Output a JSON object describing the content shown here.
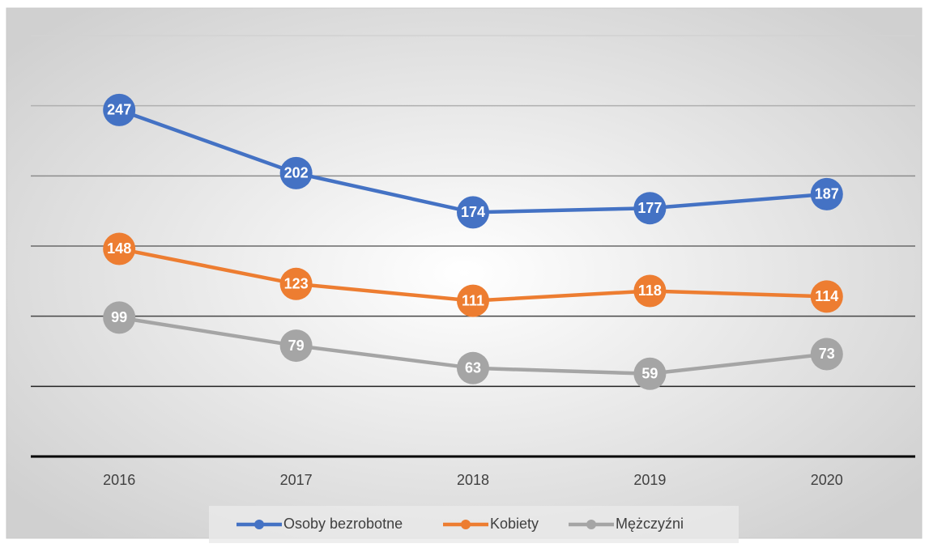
{
  "chart_data": {
    "type": "line",
    "categories": [
      "2016",
      "2017",
      "2018",
      "2019",
      "2020"
    ],
    "series": [
      {
        "name": "Osoby bezrobotne",
        "color": "#4472c4",
        "values": [
          247,
          202,
          174,
          177,
          187
        ]
      },
      {
        "name": "Kobiety",
        "color": "#ed7d31",
        "values": [
          148,
          123,
          111,
          118,
          114
        ]
      },
      {
        "name": "Mężczyźni",
        "color": "#a5a5a5",
        "values": [
          99,
          79,
          63,
          59,
          73
        ]
      }
    ],
    "ylim": [
      0,
      300
    ],
    "yticks": [
      0,
      50,
      100,
      150,
      200,
      250,
      300
    ],
    "grid": true
  }
}
